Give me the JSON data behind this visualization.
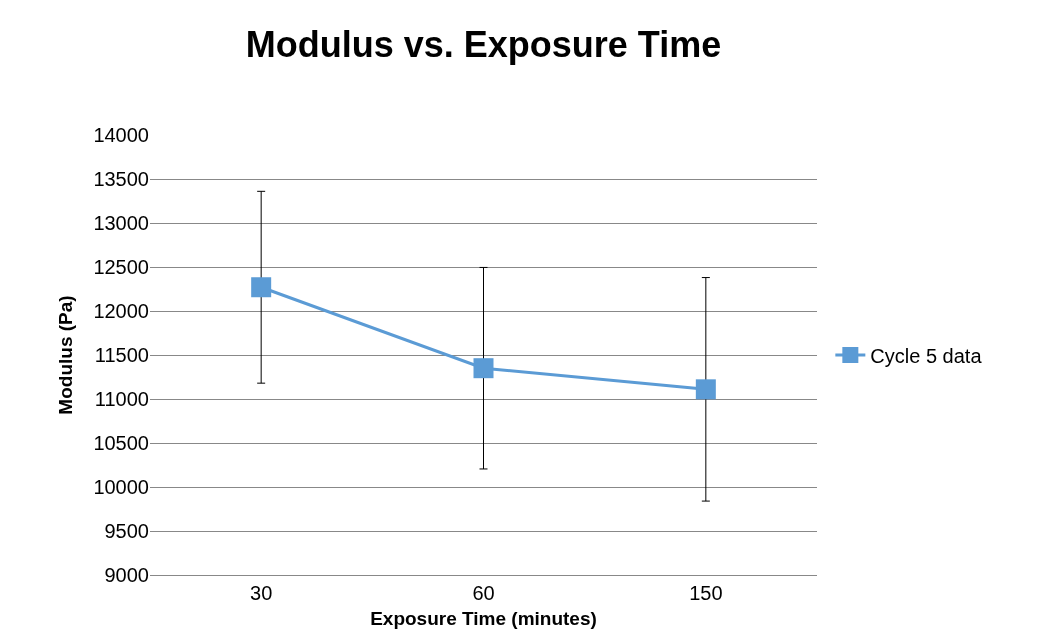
{
  "chart_data": {
    "type": "line",
    "title": "Modulus vs. Exposure Time",
    "xlabel": "Exposure Time (minutes)",
    "ylabel": "Modulus (Pa)",
    "categories": [
      "30",
      "60",
      "150"
    ],
    "series": [
      {
        "name": "Cycle 5 data",
        "color": "#5b9bd5",
        "values": [
          12270,
          11350,
          11110
        ],
        "errors": [
          1090,
          1145,
          1270
        ]
      }
    ],
    "ylim": [
      9000,
      14000
    ],
    "yticks": [
      9000,
      9500,
      10000,
      10500,
      11000,
      11500,
      12000,
      12500,
      13000,
      13500,
      14000
    ],
    "grid": "y",
    "legend": "right",
    "marker": "square",
    "line_style": "solid"
  }
}
